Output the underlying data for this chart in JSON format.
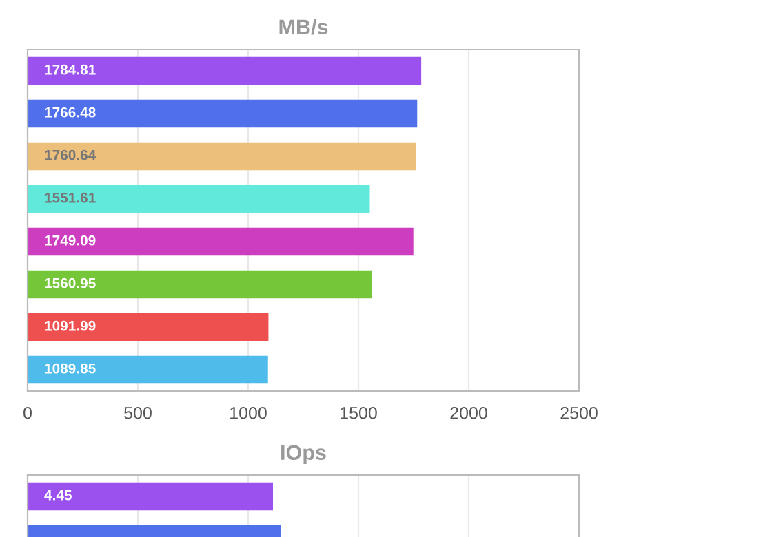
{
  "chart_data": [
    {
      "type": "bar",
      "orientation": "horizontal",
      "title": "MB/s",
      "categories": [
        null,
        null,
        null,
        null,
        null,
        null,
        null,
        null
      ],
      "values": [
        1784.81,
        1766.48,
        1760.64,
        1551.61,
        1749.09,
        1560.95,
        1091.99,
        1089.85
      ],
      "data_labels": true,
      "colors": [
        "#9b51ee",
        "#4f70ea",
        "#ecc07a",
        "#61e9dc",
        "#cc3dc0",
        "#75c639",
        "#ee5050",
        "#4fbbeb"
      ],
      "xlim": [
        0,
        2500
      ],
      "xticks": [
        0,
        500,
        1000,
        1500,
        2000,
        2500
      ],
      "grid": "x",
      "tick_labels": "x"
    },
    {
      "type": "bar",
      "orientation": "horizontal",
      "title": "IOps",
      "categories": [
        null,
        null
      ],
      "values": [
        4.45,
        4.6
      ],
      "value_labels": [
        "4.45",
        null
      ],
      "colors": [
        "#9b51ee",
        "#4f70ea"
      ],
      "xlim": [
        0,
        10
      ],
      "xticks": [
        {
          "value": 2,
          "label": null
        },
        {
          "value": 4,
          "label": null
        },
        {
          "value": 6,
          "label": null
        },
        {
          "value": 8,
          "label": null
        }
      ],
      "grid": "x",
      "tick_labels": false
    }
  ]
}
